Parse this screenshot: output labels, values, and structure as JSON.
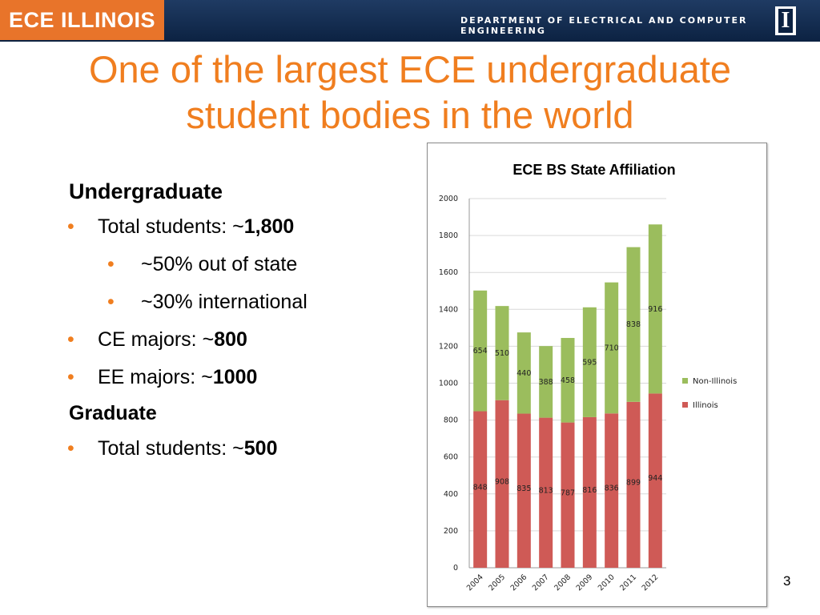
{
  "header": {
    "logo_text": "ECE ILLINOIS",
    "department": "DEPARTMENT OF ELECTRICAL AND COMPUTER ENGINEERING",
    "university_mark": "I",
    "logo_color": "#e8742a",
    "bar_color": "#0c2242"
  },
  "slide": {
    "title_line1": "One of the largest ECE undergraduate",
    "title_line2": "student bodies in the world",
    "title_color": "#f07e1f",
    "page_number": "3"
  },
  "content": {
    "undergrad_heading": "Undergraduate",
    "total_label": "Total students: ~",
    "total_value": "1,800",
    "out_of_state": "~50% out of state",
    "international": "~30% international",
    "ce_label": "CE majors: ~",
    "ce_value": "800",
    "ee_label": "EE majors: ~",
    "ee_value": "1000",
    "grad_heading": "Graduate",
    "grad_total_label": "Total students: ~",
    "grad_total_value": "500",
    "bullet_char": "•"
  },
  "chart_data": {
    "type": "bar",
    "stacked": true,
    "title": "ECE BS State Affiliation",
    "categories": [
      "2004",
      "2005",
      "2006",
      "2007",
      "2008",
      "2009",
      "2010",
      "2011",
      "2012"
    ],
    "series": [
      {
        "name": "Illinois",
        "color": "#cf5a56",
        "values": [
          848,
          908,
          835,
          813,
          787,
          816,
          836,
          899,
          944
        ]
      },
      {
        "name": "Non-Illinois",
        "color": "#9bbd5d",
        "values": [
          654,
          510,
          440,
          388,
          458,
          595,
          710,
          838,
          916
        ]
      }
    ],
    "ylim": [
      0,
      2000
    ],
    "yticks": [
      "0",
      "200",
      "400",
      "600",
      "800",
      "1000",
      "1200",
      "1400",
      "1600",
      "1800",
      "2000"
    ],
    "grid": true,
    "legend": "right"
  }
}
